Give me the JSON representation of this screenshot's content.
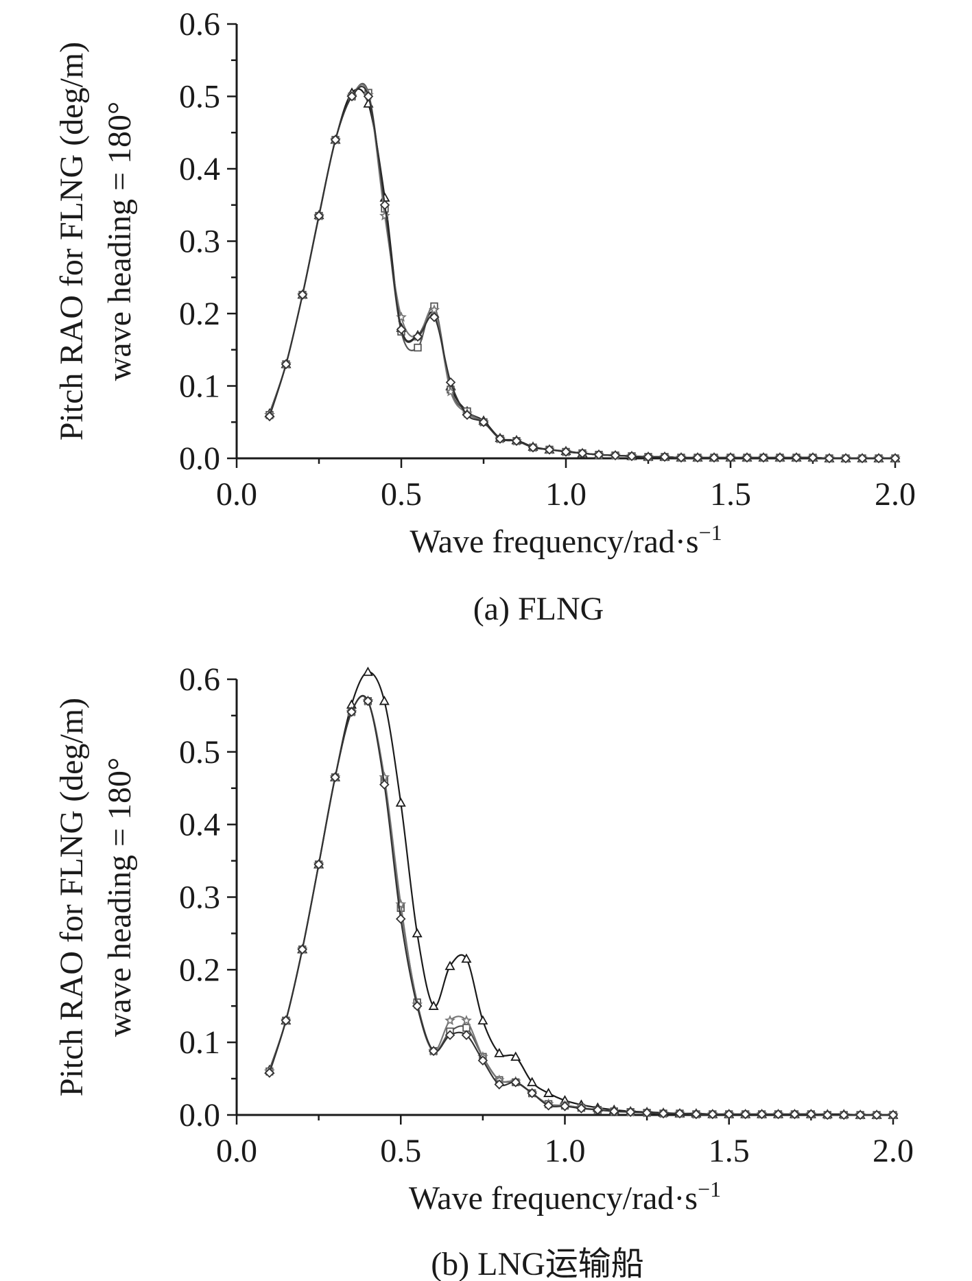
{
  "colors": {
    "axis": "#1a1a1a",
    "series": [
      "#1a1a1a",
      "#555555",
      "#777777",
      "#333333"
    ]
  },
  "chart_data": [
    {
      "type": "line",
      "caption": "(a) FLNG",
      "xlabel": "Wave frequency/rad·s",
      "xlabel_sup": "−1",
      "ylabel_line1": "Pitch RAO for FLNG (deg/m)",
      "ylabel_line2": "wave heading = 180°",
      "xlim": [
        0.0,
        2.0
      ],
      "ylim": [
        0.0,
        0.6
      ],
      "xticks": [
        "0.0",
        "0.5",
        "1.0",
        "1.5",
        "2.0"
      ],
      "yticks": [
        "0.0",
        "0.1",
        "0.2",
        "0.3",
        "0.4",
        "0.5",
        "0.6"
      ],
      "x": [
        0.1,
        0.15,
        0.2,
        0.25,
        0.3,
        0.35,
        0.4,
        0.45,
        0.5,
        0.55,
        0.6,
        0.65,
        0.7,
        0.75,
        0.8,
        0.85,
        0.9,
        0.95,
        1.0,
        1.05,
        1.1,
        1.15,
        1.2,
        1.25,
        1.3,
        1.35,
        1.4,
        1.45,
        1.5,
        1.55,
        1.6,
        1.65,
        1.7,
        1.75,
        1.8,
        1.85,
        1.9,
        1.95,
        2.0
      ],
      "series": [
        {
          "marker": "triangle",
          "values": [
            0.062,
            0.13,
            0.226,
            0.336,
            0.44,
            0.505,
            0.49,
            0.36,
            0.18,
            0.17,
            0.2,
            0.1,
            0.065,
            0.052,
            0.028,
            0.025,
            0.016,
            0.012,
            0.01,
            0.007,
            0.005,
            0.004,
            0.003,
            0.002,
            0.002,
            0.001,
            0.001,
            0.001,
            0.001,
            0.001,
            0.001,
            0.001,
            0.001,
            0.001,
            0.0,
            0.0,
            0.0,
            0.0,
            0.0
          ]
        },
        {
          "marker": "square",
          "values": [
            0.06,
            0.13,
            0.226,
            0.335,
            0.44,
            0.5,
            0.505,
            0.345,
            0.175,
            0.153,
            0.21,
            0.095,
            0.065,
            0.05,
            0.027,
            0.024,
            0.015,
            0.012,
            0.009,
            0.007,
            0.005,
            0.004,
            0.003,
            0.002,
            0.002,
            0.001,
            0.001,
            0.001,
            0.001,
            0.001,
            0.001,
            0.001,
            0.001,
            0.001,
            0.0,
            0.0,
            0.0,
            0.0,
            0.0
          ]
        },
        {
          "marker": "star",
          "values": [
            0.06,
            0.13,
            0.226,
            0.335,
            0.44,
            0.5,
            0.502,
            0.335,
            0.195,
            0.168,
            0.205,
            0.092,
            0.062,
            0.05,
            0.027,
            0.024,
            0.015,
            0.012,
            0.009,
            0.007,
            0.005,
            0.004,
            0.003,
            0.002,
            0.002,
            0.001,
            0.001,
            0.001,
            0.001,
            0.001,
            0.001,
            0.001,
            0.001,
            0.001,
            0.0,
            0.0,
            0.0,
            0.0,
            0.0
          ]
        },
        {
          "marker": "diamond",
          "values": [
            0.058,
            0.13,
            0.226,
            0.335,
            0.44,
            0.5,
            0.5,
            0.35,
            0.178,
            0.168,
            0.195,
            0.105,
            0.06,
            0.05,
            0.027,
            0.024,
            0.015,
            0.012,
            0.009,
            0.007,
            0.005,
            0.004,
            0.003,
            0.002,
            0.002,
            0.001,
            0.001,
            0.001,
            0.001,
            0.001,
            0.001,
            0.001,
            0.001,
            0.001,
            0.0,
            0.0,
            0.0,
            0.0,
            0.0
          ]
        }
      ]
    },
    {
      "type": "line",
      "caption": "(b) LNG运输船",
      "xlabel": "Wave frequency/rad·s",
      "xlabel_sup": "−1",
      "ylabel_line1": "Pitch RAO for FLNG (deg/m)",
      "ylabel_line2": "wave heading = 180°",
      "xlim": [
        0.0,
        2.0
      ],
      "ylim": [
        0.0,
        0.6
      ],
      "xticks": [
        "0.0",
        "0.5",
        "1.0",
        "1.5",
        "2.0"
      ],
      "yticks": [
        "0.0",
        "0.1",
        "0.2",
        "0.3",
        "0.4",
        "0.5",
        "0.6"
      ],
      "x": [
        0.1,
        0.15,
        0.2,
        0.25,
        0.3,
        0.35,
        0.4,
        0.45,
        0.5,
        0.55,
        0.6,
        0.65,
        0.7,
        0.75,
        0.8,
        0.85,
        0.9,
        0.95,
        1.0,
        1.05,
        1.1,
        1.15,
        1.2,
        1.25,
        1.3,
        1.35,
        1.4,
        1.45,
        1.5,
        1.55,
        1.6,
        1.65,
        1.7,
        1.75,
        1.8,
        1.85,
        1.9,
        1.95,
        2.0
      ],
      "series": [
        {
          "marker": "triangle",
          "values": [
            0.062,
            0.13,
            0.228,
            0.345,
            0.465,
            0.565,
            0.61,
            0.57,
            0.43,
            0.25,
            0.15,
            0.205,
            0.215,
            0.13,
            0.085,
            0.08,
            0.045,
            0.03,
            0.02,
            0.014,
            0.01,
            0.007,
            0.005,
            0.004,
            0.003,
            0.002,
            0.002,
            0.001,
            0.001,
            0.001,
            0.001,
            0.001,
            0.001,
            0.001,
            0.001,
            0.001,
            0.0,
            0.0,
            0.0
          ]
        },
        {
          "marker": "square",
          "values": [
            0.06,
            0.13,
            0.228,
            0.345,
            0.465,
            0.555,
            0.57,
            0.46,
            0.285,
            0.155,
            0.088,
            0.115,
            0.12,
            0.08,
            0.048,
            0.045,
            0.03,
            0.015,
            0.013,
            0.01,
            0.007,
            0.005,
            0.004,
            0.003,
            0.002,
            0.002,
            0.001,
            0.001,
            0.001,
            0.001,
            0.001,
            0.001,
            0.001,
            0.001,
            0.0,
            0.0,
            0.0,
            0.0,
            0.0
          ]
        },
        {
          "marker": "star",
          "values": [
            0.06,
            0.13,
            0.228,
            0.345,
            0.465,
            0.555,
            0.57,
            0.465,
            0.29,
            0.152,
            0.088,
            0.13,
            0.13,
            0.08,
            0.048,
            0.046,
            0.03,
            0.015,
            0.013,
            0.01,
            0.007,
            0.005,
            0.004,
            0.003,
            0.002,
            0.002,
            0.001,
            0.001,
            0.001,
            0.001,
            0.001,
            0.001,
            0.001,
            0.001,
            0.0,
            0.0,
            0.0,
            0.0,
            0.0
          ]
        },
        {
          "marker": "diamond",
          "values": [
            0.058,
            0.13,
            0.228,
            0.345,
            0.465,
            0.555,
            0.57,
            0.455,
            0.27,
            0.15,
            0.088,
            0.11,
            0.11,
            0.075,
            0.042,
            0.045,
            0.03,
            0.013,
            0.012,
            0.009,
            0.007,
            0.005,
            0.004,
            0.003,
            0.002,
            0.002,
            0.001,
            0.001,
            0.001,
            0.001,
            0.001,
            0.001,
            0.001,
            0.001,
            0.0,
            0.0,
            0.0,
            0.0,
            0.0
          ]
        }
      ]
    }
  ]
}
